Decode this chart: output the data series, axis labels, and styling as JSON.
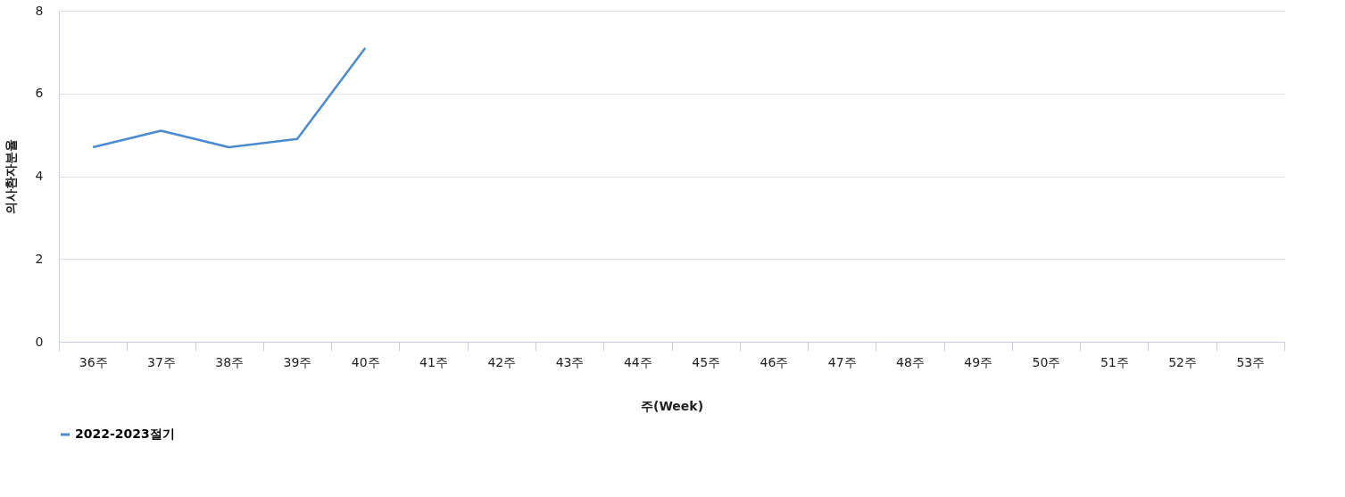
{
  "chart_data": {
    "type": "line",
    "xlabel": "주(Week)",
    "ylabel": "의사환자분율",
    "categories": [
      "36주",
      "37주",
      "38주",
      "39주",
      "40주",
      "41주",
      "42주",
      "43주",
      "44주",
      "45주",
      "46주",
      "47주",
      "48주",
      "49주",
      "50주",
      "51주",
      "52주",
      "53주"
    ],
    "series": [
      {
        "name": "2022-2023절기",
        "color": "#4a8bd0",
        "values": [
          4.7,
          5.1,
          4.7,
          4.9,
          7.1,
          null,
          null,
          null,
          null,
          null,
          null,
          null,
          null,
          null,
          null,
          null,
          null,
          null
        ]
      }
    ],
    "ylim": [
      0,
      8
    ],
    "yticks": [
      0,
      2,
      4,
      6,
      8
    ],
    "grid": "y",
    "legend": "bottom",
    "marker": "none",
    "line_style": "solid"
  }
}
